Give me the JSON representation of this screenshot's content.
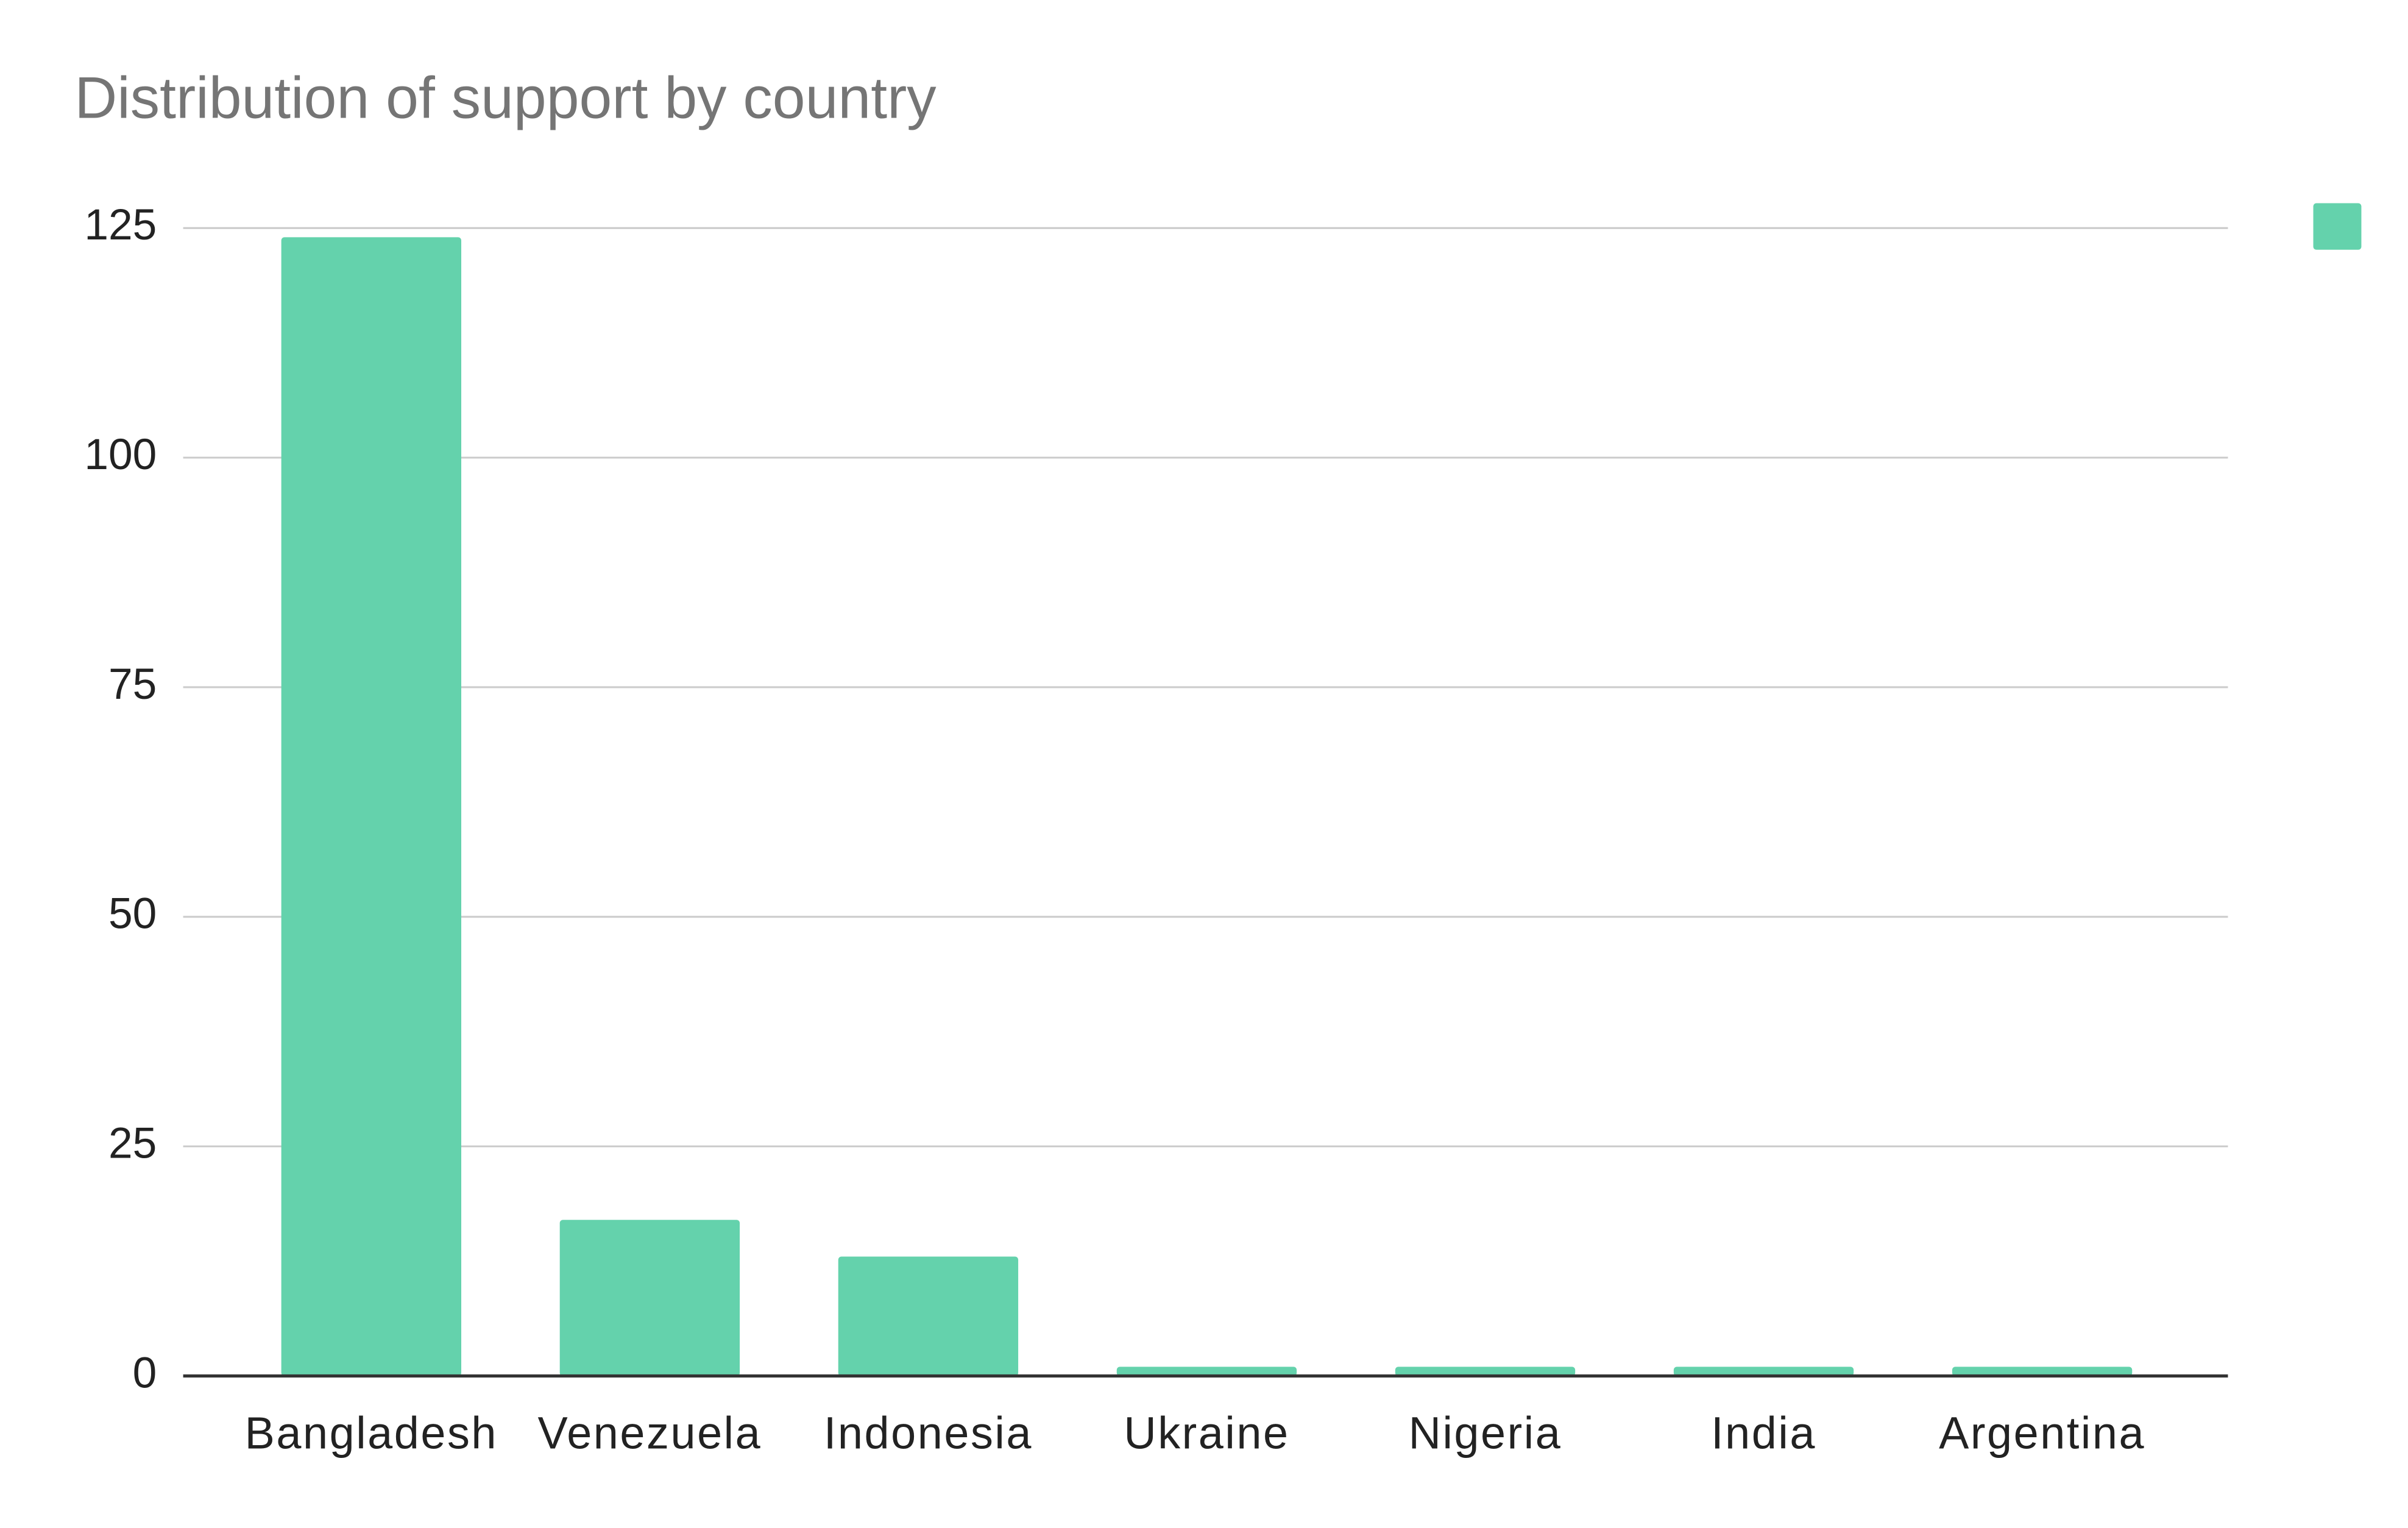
{
  "chart_data": {
    "type": "bar",
    "title": "Distribution of support by country",
    "categories": [
      "Bangladesh",
      "Venezuela",
      "Indonesia",
      "Ukraine",
      "Nigeria",
      "India",
      "Argentina"
    ],
    "values": [
      124,
      17,
      13,
      1,
      1,
      1,
      1
    ],
    "color": "#64d2ac",
    "ylim": [
      0,
      125
    ],
    "yticks": [
      0,
      25,
      50,
      75,
      100,
      125
    ],
    "grid": true
  }
}
